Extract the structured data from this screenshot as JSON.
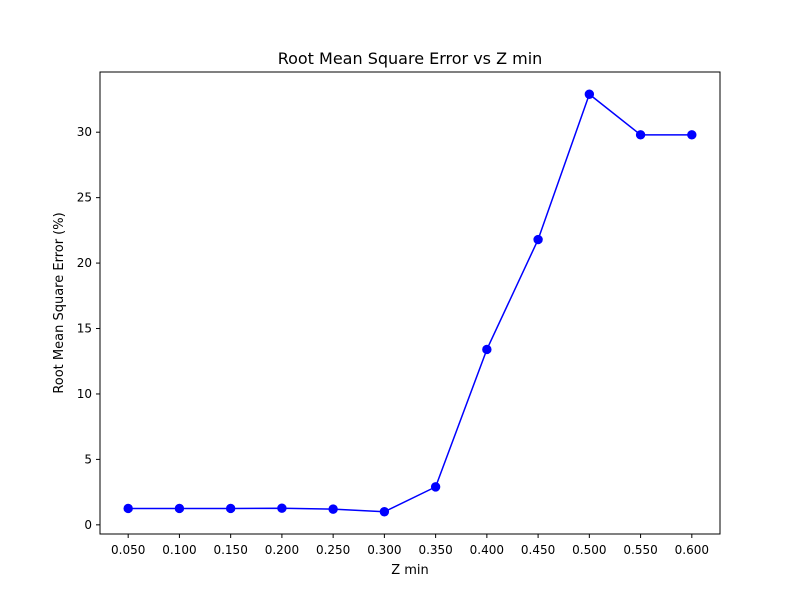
{
  "chart_data": {
    "type": "line",
    "title": "Root Mean Square Error vs Z min",
    "xlabel": "Z min",
    "ylabel": "Root Mean Square Error (%)",
    "x": [
      0.05,
      0.1,
      0.15,
      0.2,
      0.25,
      0.3,
      0.35,
      0.4,
      0.45,
      0.5,
      0.55,
      0.6
    ],
    "x_tick_labels": [
      "0.050",
      "0.100",
      "0.150",
      "0.200",
      "0.250",
      "0.300",
      "0.350",
      "0.400",
      "0.450",
      "0.500",
      "0.550",
      "0.600"
    ],
    "xlim": [
      0.0225,
      0.6275
    ],
    "ylim": [
      -0.7,
      34.6
    ],
    "y_ticks": [
      0,
      5,
      10,
      15,
      20,
      25,
      30
    ],
    "y_tick_labels": [
      "0",
      "5",
      "10",
      "15",
      "20",
      "25",
      "30"
    ],
    "series": [
      {
        "values": [
          1.25,
          1.25,
          1.25,
          1.27,
          1.2,
          1.0,
          2.9,
          13.4,
          21.8,
          32.9,
          29.8,
          29.8
        ],
        "color": "#0000ff",
        "marker": "circle"
      }
    ],
    "grid": false,
    "legend": "none"
  }
}
